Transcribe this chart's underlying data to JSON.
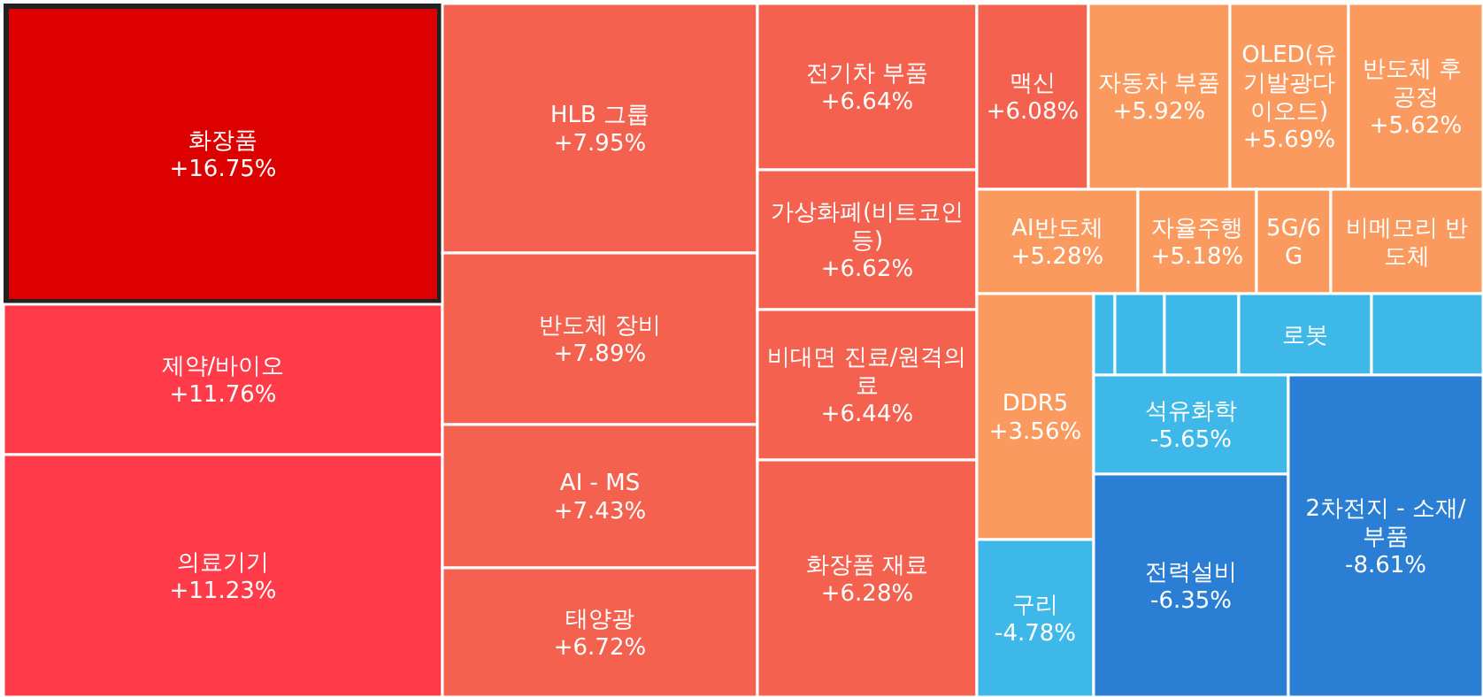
{
  "chart_data": {
    "type": "other",
    "categories": [
      "화장품",
      "제약/바이오",
      "의료기기",
      "HLB 그룹",
      "반도체 장비",
      "AI - MS",
      "태양광",
      "전기차 부품",
      "가상화폐(비트코인등)",
      "비대면 진료/원격의료",
      "화장품 재료",
      "맥신",
      "자동차 부품",
      "OLED(유기발광다이오드)",
      "반도체 후 공정",
      "AI반도체",
      "자율주행",
      "5G/6G",
      "비메모리 반도체",
      "DDR5",
      "구리",
      null,
      null,
      null,
      "로봇",
      null,
      "석유화학",
      "전력설비",
      "2차전지 - 소재/부품"
    ],
    "values": [
      16.75,
      11.76,
      11.23,
      7.95,
      7.89,
      7.43,
      6.72,
      6.64,
      6.62,
      6.44,
      6.28,
      6.08,
      5.92,
      5.69,
      5.62,
      5.28,
      5.18,
      null,
      null,
      3.56,
      -4.78,
      null,
      null,
      null,
      null,
      null,
      -5.65,
      -6.35,
      -8.61
    ],
    "value_labels": [
      "+16.75%",
      "+11.76%",
      "+11.23%",
      "+7.95%",
      "+7.89%",
      "+7.43%",
      "+6.72%",
      "+6.64%",
      "+6.62%",
      "+6.44%",
      "+6.28%",
      "+6.08%",
      "+5.92%",
      "+5.69%",
      "+5.62%",
      "+5.28%",
      "+5.18%",
      null,
      null,
      "+3.56%",
      "-4.78%",
      null,
      null,
      null,
      null,
      null,
      "-5.65%",
      "-6.35%",
      "-8.61%"
    ],
    "colors": [
      "#dd0000",
      "#ff3b4a",
      "#ff3b4a",
      "#f4614e",
      "#f4614e",
      "#f4614e",
      "#f4614e",
      "#f4614e",
      "#f4614e",
      "#f4614e",
      "#f4614e",
      "#f4614e",
      "#fa9a5e",
      "#fa9a5e",
      "#fa9a5e",
      "#fa9a5e",
      "#fa9a5e",
      "#fa9a5e",
      "#fa9a5e",
      "#fa9a5e",
      "#3db8e8",
      "#3db8e8",
      "#3db8e8",
      "#3db8e8",
      "#3db8e8",
      "#3db8e8",
      "#3db8e8",
      "#2a7fd4",
      "#2a7fd4"
    ]
  }
}
